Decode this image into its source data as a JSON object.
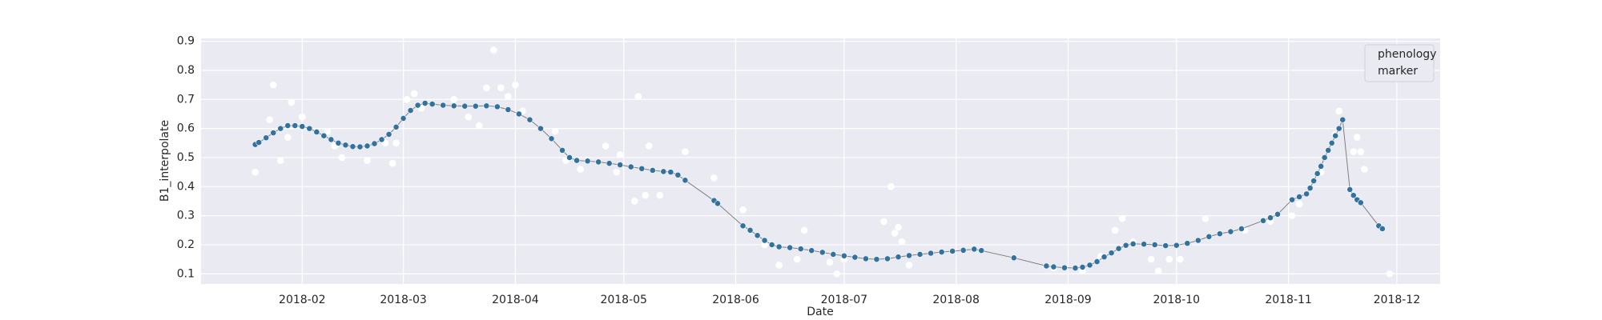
{
  "chart_data": {
    "type": "scatter",
    "xlabel": "Date",
    "ylabel": "B1_interpolate",
    "xlim": [
      "2018-01-04",
      "2018-12-13"
    ],
    "ylim": [
      0.065,
      0.91
    ],
    "xticks": [
      "2018-02",
      "2018-03",
      "2018-04",
      "2018-05",
      "2018-06",
      "2018-07",
      "2018-08",
      "2018-09",
      "2018-10",
      "2018-11",
      "2018-12"
    ],
    "yticks": [
      0.1,
      0.2,
      0.3,
      0.4,
      0.5,
      0.6,
      0.7,
      0.8,
      0.9
    ],
    "grid": true,
    "legend": "upper right",
    "series": [
      {
        "name": "phenology",
        "color": "#ffffff",
        "line": false,
        "x": [
          "2018-01-19",
          "2018-01-23",
          "2018-01-24",
          "2018-01-26",
          "2018-01-28",
          "2018-01-29",
          "2018-02-01",
          "2018-02-08",
          "2018-02-10",
          "2018-02-12",
          "2018-02-19",
          "2018-02-24",
          "2018-02-26",
          "2018-02-27",
          "2018-03-02",
          "2018-03-04",
          "2018-03-06",
          "2018-03-15",
          "2018-03-19",
          "2018-03-22",
          "2018-03-24",
          "2018-03-26",
          "2018-03-28",
          "2018-03-30",
          "2018-04-01",
          "2018-04-03",
          "2018-04-12",
          "2018-04-15",
          "2018-04-19",
          "2018-04-26",
          "2018-04-29",
          "2018-04-30",
          "2018-05-04",
          "2018-05-05",
          "2018-05-07",
          "2018-05-08",
          "2018-05-11",
          "2018-05-18",
          "2018-05-26",
          "2018-06-03",
          "2018-06-09",
          "2018-06-13",
          "2018-06-18",
          "2018-06-20",
          "2018-06-27",
          "2018-06-29",
          "2018-07-01",
          "2018-07-12",
          "2018-07-14",
          "2018-07-15",
          "2018-07-16",
          "2018-07-17",
          "2018-07-19",
          "2018-08-28",
          "2018-09-05",
          "2018-09-10",
          "2018-09-14",
          "2018-09-16",
          "2018-09-19",
          "2018-09-24",
          "2018-09-26",
          "2018-09-29",
          "2018-10-02",
          "2018-10-09",
          "2018-10-20",
          "2018-10-27",
          "2018-11-02",
          "2018-11-04",
          "2018-11-10",
          "2018-11-14",
          "2018-11-15",
          "2018-11-19",
          "2018-11-20",
          "2018-11-21",
          "2018-11-22",
          "2018-11-29"
        ],
        "values": [
          0.45,
          0.63,
          0.75,
          0.49,
          0.57,
          0.69,
          0.64,
          0.59,
          0.54,
          0.5,
          0.49,
          0.55,
          0.48,
          0.55,
          0.7,
          0.72,
          0.67,
          0.7,
          0.64,
          0.61,
          0.74,
          0.87,
          0.74,
          0.71,
          0.75,
          0.66,
          0.59,
          0.49,
          0.46,
          0.54,
          0.45,
          0.51,
          0.35,
          0.71,
          0.37,
          0.54,
          0.37,
          0.52,
          0.43,
          0.32,
          0.2,
          0.13,
          0.15,
          0.25,
          0.14,
          0.1,
          0.15,
          0.28,
          0.4,
          0.24,
          0.26,
          0.21,
          0.13,
          0.12,
          0.11,
          0.16,
          0.25,
          0.29,
          0.21,
          0.15,
          0.11,
          0.15,
          0.15,
          0.29,
          0.25,
          0.28,
          0.3,
          0.34,
          0.45,
          0.58,
          0.66,
          0.52,
          0.57,
          0.52,
          0.46,
          0.1
        ]
      },
      {
        "name": "marker",
        "color": "#31729e",
        "line": true,
        "x": [
          "2018-01-19",
          "2018-01-20",
          "2018-01-22",
          "2018-01-24",
          "2018-01-26",
          "2018-01-28",
          "2018-01-30",
          "2018-02-01",
          "2018-02-03",
          "2018-02-05",
          "2018-02-07",
          "2018-02-09",
          "2018-02-11",
          "2018-02-13",
          "2018-02-15",
          "2018-02-17",
          "2018-02-19",
          "2018-02-21",
          "2018-02-23",
          "2018-02-25",
          "2018-02-27",
          "2018-03-01",
          "2018-03-03",
          "2018-03-05",
          "2018-03-07",
          "2018-03-09",
          "2018-03-12",
          "2018-03-15",
          "2018-03-18",
          "2018-03-21",
          "2018-03-24",
          "2018-03-27",
          "2018-03-30",
          "2018-04-02",
          "2018-04-05",
          "2018-04-08",
          "2018-04-11",
          "2018-04-14",
          "2018-04-16",
          "2018-04-18",
          "2018-04-21",
          "2018-04-24",
          "2018-04-27",
          "2018-04-30",
          "2018-05-03",
          "2018-05-06",
          "2018-05-09",
          "2018-05-12",
          "2018-05-14",
          "2018-05-16",
          "2018-05-18",
          "2018-05-26",
          "2018-05-27",
          "2018-06-03",
          "2018-06-05",
          "2018-06-07",
          "2018-06-09",
          "2018-06-11",
          "2018-06-13",
          "2018-06-16",
          "2018-06-19",
          "2018-06-22",
          "2018-06-25",
          "2018-06-28",
          "2018-07-01",
          "2018-07-04",
          "2018-07-07",
          "2018-07-10",
          "2018-07-13",
          "2018-07-16",
          "2018-07-19",
          "2018-07-22",
          "2018-07-25",
          "2018-07-28",
          "2018-07-31",
          "2018-08-03",
          "2018-08-06",
          "2018-08-08",
          "2018-08-17",
          "2018-08-26",
          "2018-08-28",
          "2018-08-31",
          "2018-09-03",
          "2018-09-05",
          "2018-09-07",
          "2018-09-09",
          "2018-09-11",
          "2018-09-13",
          "2018-09-15",
          "2018-09-17",
          "2018-09-19",
          "2018-09-22",
          "2018-09-25",
          "2018-09-28",
          "2018-10-01",
          "2018-10-04",
          "2018-10-07",
          "2018-10-10",
          "2018-10-13",
          "2018-10-16",
          "2018-10-19",
          "2018-10-25",
          "2018-10-27",
          "2018-10-29",
          "2018-11-02",
          "2018-11-04",
          "2018-11-06",
          "2018-11-07",
          "2018-11-08",
          "2018-11-09",
          "2018-11-10",
          "2018-11-11",
          "2018-11-12",
          "2018-11-13",
          "2018-11-14",
          "2018-11-15",
          "2018-11-16",
          "2018-11-18",
          "2018-11-19",
          "2018-11-20",
          "2018-11-21",
          "2018-11-26",
          "2018-11-27"
        ],
        "values": [
          0.545,
          0.552,
          0.568,
          0.585,
          0.6,
          0.61,
          0.61,
          0.607,
          0.6,
          0.588,
          0.575,
          0.562,
          0.55,
          0.543,
          0.538,
          0.537,
          0.54,
          0.548,
          0.562,
          0.58,
          0.605,
          0.635,
          0.662,
          0.68,
          0.687,
          0.684,
          0.68,
          0.678,
          0.677,
          0.677,
          0.678,
          0.675,
          0.665,
          0.65,
          0.63,
          0.6,
          0.565,
          0.525,
          0.5,
          0.49,
          0.488,
          0.485,
          0.48,
          0.475,
          0.468,
          0.462,
          0.456,
          0.452,
          0.45,
          0.44,
          0.422,
          0.352,
          0.342,
          0.265,
          0.25,
          0.232,
          0.215,
          0.2,
          0.193,
          0.19,
          0.186,
          0.18,
          0.174,
          0.167,
          0.162,
          0.157,
          0.152,
          0.15,
          0.152,
          0.158,
          0.163,
          0.167,
          0.171,
          0.175,
          0.178,
          0.181,
          0.185,
          0.18,
          0.155,
          0.127,
          0.124,
          0.121,
          0.12,
          0.123,
          0.13,
          0.142,
          0.158,
          0.172,
          0.187,
          0.198,
          0.203,
          0.202,
          0.2,
          0.197,
          0.198,
          0.205,
          0.215,
          0.228,
          0.238,
          0.245,
          0.255,
          0.283,
          0.293,
          0.305,
          0.355,
          0.365,
          0.375,
          0.395,
          0.42,
          0.445,
          0.47,
          0.5,
          0.525,
          0.55,
          0.575,
          0.6,
          0.63,
          0.39,
          0.37,
          0.355,
          0.345,
          0.265,
          0.255
        ]
      }
    ]
  }
}
